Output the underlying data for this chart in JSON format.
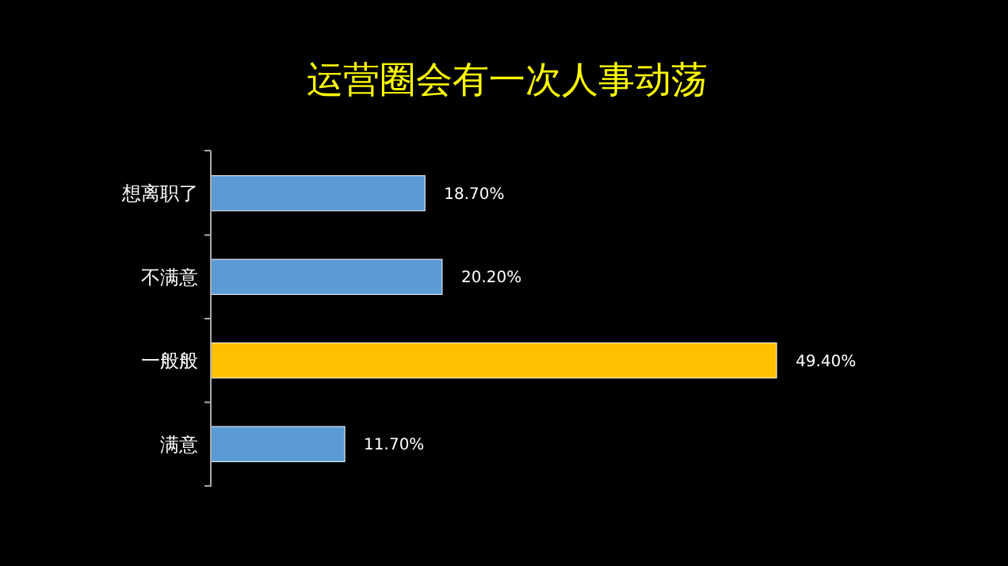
{
  "chart_data": {
    "type": "bar",
    "orientation": "horizontal",
    "title": "运营圈会有一次人事动荡",
    "categories": [
      "想离职了",
      "不满意",
      "一般般",
      "满意"
    ],
    "values": [
      18.7,
      20.2,
      49.4,
      11.7
    ],
    "colors": [
      "#5b9bd5",
      "#5b9bd5",
      "#ffc000",
      "#5b9bd5"
    ],
    "value_labels": [
      "18.70%",
      "20.20%",
      "49.40%",
      "11.70%"
    ]
  }
}
